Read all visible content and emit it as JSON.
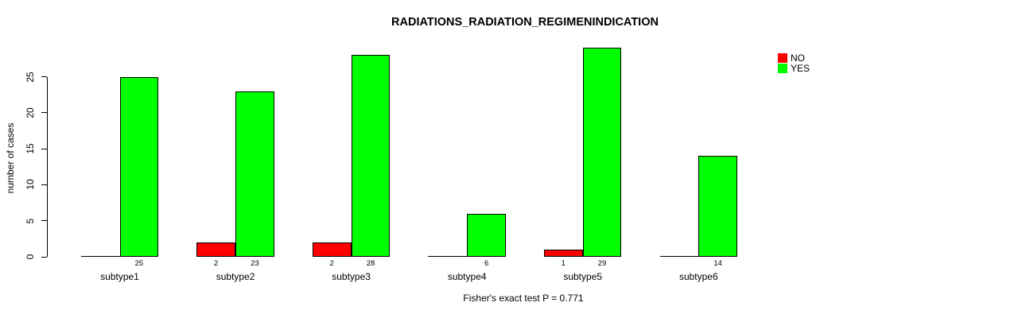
{
  "title": "RADIATIONS_RADIATION_REGIMENINDICATION",
  "chart_data": {
    "type": "bar",
    "grouped": true,
    "title": "RADIATIONS_RADIATION_REGIMENINDICATION",
    "xlabel": "",
    "ylabel": "number of cases",
    "categories": [
      "subtype1",
      "subtype2",
      "subtype3",
      "subtype4",
      "subtype5",
      "subtype6"
    ],
    "series": [
      {
        "name": "NO",
        "color": "#FF0000",
        "values": [
          0,
          2,
          2,
          0,
          1,
          0
        ]
      },
      {
        "name": "YES",
        "color": "#00FF00",
        "values": [
          25,
          23,
          28,
          6,
          29,
          14
        ]
      }
    ],
    "bar_value_labels": [
      [
        null,
        "2",
        "2",
        null,
        "1",
        null
      ],
      [
        "25",
        "23",
        "28",
        "6",
        "29",
        "14"
      ]
    ],
    "yticks": [
      0,
      5,
      10,
      15,
      20,
      25
    ],
    "ylim": [
      0,
      29
    ],
    "grid": false,
    "legend": {
      "position": "top-right",
      "entries": [
        "NO",
        "YES"
      ]
    },
    "footnote": "Fisher's exact test P = 0.771"
  }
}
